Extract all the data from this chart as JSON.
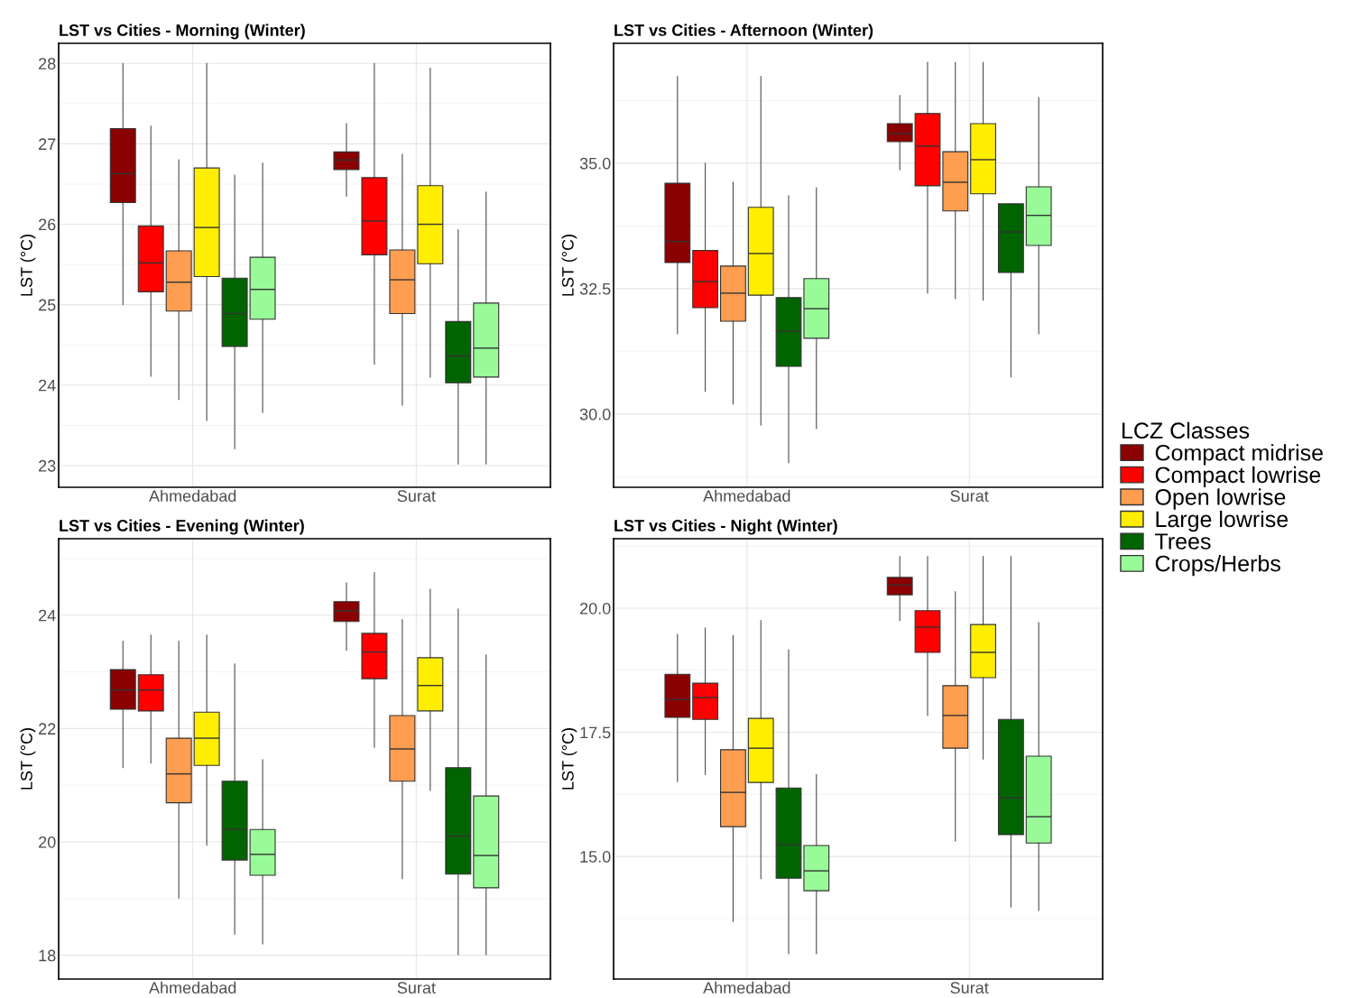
{
  "chart_data": [
    {
      "type": "box",
      "title": "LST vs Cities - Morning (Winter)",
      "ylabel": "LST (°C)",
      "categories": [
        "Ahmedabad",
        "Surat"
      ],
      "ylim": [
        22.73,
        28.25
      ],
      "yticks": [
        23,
        24,
        25,
        26,
        27,
        28
      ],
      "grid": true,
      "legend": "right",
      "legend_title": "LCZ Classes",
      "series": [
        {
          "name": "Compact midrise",
          "color": "#8b0000",
          "boxes": [
            {
              "low": 25.0,
              "q1": 26.27,
              "median": 26.63,
              "q3": 27.19,
              "high": 28.0
            },
            {
              "low": 26.35,
              "q1": 26.68,
              "median": 26.8,
              "q3": 26.9,
              "high": 27.25
            }
          ]
        },
        {
          "name": "Compact lowrise",
          "color": "#ff0000",
          "boxes": [
            {
              "low": 24.11,
              "q1": 25.16,
              "median": 25.52,
              "q3": 25.98,
              "high": 27.22
            },
            {
              "low": 24.26,
              "q1": 25.62,
              "median": 26.04,
              "q3": 26.58,
              "high": 28.0
            }
          ]
        },
        {
          "name": "Open lowrise",
          "color": "#ff9e50",
          "boxes": [
            {
              "low": 23.82,
              "q1": 24.92,
              "median": 25.28,
              "q3": 25.67,
              "high": 26.8
            },
            {
              "low": 23.75,
              "q1": 24.89,
              "median": 25.31,
              "q3": 25.68,
              "high": 26.87
            }
          ]
        },
        {
          "name": "Large lowrise",
          "color": "#ffee00",
          "boxes": [
            {
              "low": 23.56,
              "q1": 25.35,
              "median": 25.96,
              "q3": 26.7,
              "high": 28.0
            },
            {
              "low": 24.1,
              "q1": 25.51,
              "median": 26.0,
              "q3": 26.48,
              "high": 27.94
            }
          ]
        },
        {
          "name": "Trees",
          "color": "#006400",
          "boxes": [
            {
              "low": 23.21,
              "q1": 24.48,
              "median": 24.89,
              "q3": 25.33,
              "high": 26.61
            },
            {
              "low": 23.02,
              "q1": 24.03,
              "median": 24.36,
              "q3": 24.79,
              "high": 25.93
            }
          ]
        },
        {
          "name": "Crops/Herbs",
          "color": "#98fb98",
          "boxes": [
            {
              "low": 23.66,
              "q1": 24.82,
              "median": 25.19,
              "q3": 25.59,
              "high": 26.76
            },
            {
              "low": 23.02,
              "q1": 24.1,
              "median": 24.46,
              "q3": 25.02,
              "high": 26.4
            }
          ]
        }
      ]
    },
    {
      "type": "box",
      "title": "LST vs Cities - Afternoon (Winter)",
      "ylabel": "LST (°C)",
      "categories": [
        "Ahmedabad",
        "Surat"
      ],
      "ylim": [
        28.54,
        37.39
      ],
      "yticks": [
        {
          "value": 30,
          "label": "30.0"
        },
        {
          "value": 32.5,
          "label": "32.5"
        },
        {
          "value": 35,
          "label": "35.0"
        }
      ],
      "grid": true,
      "series": [
        {
          "color": "#8b0000",
          "boxes": [
            {
              "low": 31.6,
              "q1": 33.02,
              "median": 33.44,
              "q3": 34.6,
              "high": 36.73
            },
            {
              "low": 34.87,
              "q1": 35.43,
              "median": 35.59,
              "q3": 35.79,
              "high": 36.35
            }
          ]
        },
        {
          "color": "#ff0000",
          "boxes": [
            {
              "low": 30.45,
              "q1": 32.12,
              "median": 32.64,
              "q3": 33.26,
              "high": 35.0
            },
            {
              "low": 32.41,
              "q1": 34.55,
              "median": 35.34,
              "q3": 35.99,
              "high": 37.01
            }
          ]
        },
        {
          "color": "#ff9e50",
          "boxes": [
            {
              "low": 30.2,
              "q1": 31.85,
              "median": 32.41,
              "q3": 32.95,
              "high": 34.62
            },
            {
              "low": 32.3,
              "q1": 34.05,
              "median": 34.62,
              "q3": 35.23,
              "high": 37.01
            }
          ]
        },
        {
          "color": "#ffee00",
          "boxes": [
            {
              "low": 29.78,
              "q1": 32.37,
              "median": 33.2,
              "q3": 34.12,
              "high": 36.73
            },
            {
              "low": 32.27,
              "q1": 34.39,
              "median": 35.07,
              "q3": 35.79,
              "high": 37.01
            }
          ]
        },
        {
          "color": "#006400",
          "boxes": [
            {
              "low": 29.03,
              "q1": 30.95,
              "median": 31.65,
              "q3": 32.32,
              "high": 34.35
            },
            {
              "low": 30.74,
              "q1": 32.82,
              "median": 33.63,
              "q3": 34.19,
              "high": 34.19
            }
          ]
        },
        {
          "color": "#98fb98",
          "boxes": [
            {
              "low": 29.71,
              "q1": 31.51,
              "median": 32.1,
              "q3": 32.7,
              "high": 34.51
            },
            {
              "low": 31.6,
              "q1": 33.36,
              "median": 33.96,
              "q3": 34.53,
              "high": 36.31
            }
          ]
        }
      ]
    },
    {
      "type": "box",
      "title": "LST vs Cities - Evening (Winter)",
      "ylabel": "LST (°C)",
      "categories": [
        "Ahmedabad",
        "Surat"
      ],
      "ylim": [
        17.58,
        25.35
      ],
      "yticks": [
        18,
        20,
        22,
        24
      ],
      "grid": true,
      "series": [
        {
          "color": "#8b0000",
          "boxes": [
            {
              "low": 21.31,
              "q1": 22.34,
              "median": 22.68,
              "q3": 23.04,
              "high": 23.54
            },
            {
              "low": 23.38,
              "q1": 23.89,
              "median": 24.08,
              "q3": 24.24,
              "high": 24.57
            }
          ]
        },
        {
          "color": "#ff0000",
          "boxes": [
            {
              "low": 21.39,
              "q1": 22.31,
              "median": 22.68,
              "q3": 22.95,
              "high": 23.65
            },
            {
              "low": 21.67,
              "q1": 22.88,
              "median": 23.35,
              "q3": 23.68,
              "high": 24.75
            }
          ]
        },
        {
          "color": "#ff9e50",
          "boxes": [
            {
              "low": 19.01,
              "q1": 20.69,
              "median": 21.2,
              "q3": 21.83,
              "high": 23.54
            },
            {
              "low": 19.35,
              "q1": 21.07,
              "median": 21.64,
              "q3": 22.23,
              "high": 23.92
            }
          ]
        },
        {
          "color": "#ffee00",
          "boxes": [
            {
              "low": 19.94,
              "q1": 21.35,
              "median": 21.83,
              "q3": 22.29,
              "high": 23.65
            },
            {
              "low": 20.91,
              "q1": 22.31,
              "median": 22.76,
              "q3": 23.25,
              "high": 24.46
            }
          ]
        },
        {
          "color": "#006400",
          "boxes": [
            {
              "low": 18.37,
              "q1": 19.68,
              "median": 20.22,
              "q3": 21.07,
              "high": 23.14
            },
            {
              "low": 18.01,
              "q1": 19.43,
              "median": 20.1,
              "q3": 21.31,
              "high": 24.11
            }
          ]
        },
        {
          "color": "#98fb98",
          "boxes": [
            {
              "low": 18.2,
              "q1": 19.41,
              "median": 19.78,
              "q3": 20.22,
              "high": 21.45
            },
            {
              "low": 18.01,
              "q1": 19.19,
              "median": 19.76,
              "q3": 20.81,
              "high": 23.3
            }
          ]
        }
      ]
    },
    {
      "type": "box",
      "title": "LST vs Cities - Night (Winter)",
      "ylabel": "LST (°C)",
      "categories": [
        "Ahmedabad",
        "Surat"
      ],
      "ylim": [
        12.53,
        21.4
      ],
      "yticks": [
        {
          "value": 15,
          "label": "15.0"
        },
        {
          "value": 17.5,
          "label": "17.5"
        },
        {
          "value": 20,
          "label": "20.0"
        }
      ],
      "grid": true,
      "series": [
        {
          "color": "#8b0000",
          "boxes": [
            {
              "low": 16.51,
              "q1": 17.8,
              "median": 18.16,
              "q3": 18.67,
              "high": 19.47
            },
            {
              "low": 19.75,
              "q1": 20.27,
              "median": 20.47,
              "q3": 20.62,
              "high": 21.04
            }
          ]
        },
        {
          "color": "#ff0000",
          "boxes": [
            {
              "low": 16.65,
              "q1": 17.76,
              "median": 18.2,
              "q3": 18.49,
              "high": 19.6
            },
            {
              "low": 17.84,
              "q1": 19.11,
              "median": 19.62,
              "q3": 19.95,
              "high": 21.04
            }
          ]
        },
        {
          "color": "#ff9e50",
          "boxes": [
            {
              "low": 13.69,
              "q1": 15.6,
              "median": 16.29,
              "q3": 17.15,
              "high": 19.45
            },
            {
              "low": 15.31,
              "q1": 17.18,
              "median": 17.84,
              "q3": 18.44,
              "high": 20.33
            }
          ]
        },
        {
          "color": "#ffee00",
          "boxes": [
            {
              "low": 14.55,
              "q1": 16.49,
              "median": 17.18,
              "q3": 17.78,
              "high": 19.75
            },
            {
              "low": 16.96,
              "q1": 18.6,
              "median": 19.11,
              "q3": 19.67,
              "high": 21.04
            }
          ]
        },
        {
          "color": "#006400",
          "boxes": [
            {
              "low": 13.04,
              "q1": 14.56,
              "median": 15.24,
              "q3": 16.38,
              "high": 19.16
            },
            {
              "low": 13.98,
              "q1": 15.44,
              "median": 16.18,
              "q3": 17.76,
              "high": 21.04
            }
          ]
        },
        {
          "color": "#98fb98",
          "boxes": [
            {
              "low": 13.04,
              "q1": 14.31,
              "median": 14.71,
              "q3": 15.22,
              "high": 16.65
            },
            {
              "low": 13.91,
              "q1": 15.27,
              "median": 15.8,
              "q3": 17.02,
              "high": 19.71
            }
          ]
        }
      ]
    }
  ]
}
